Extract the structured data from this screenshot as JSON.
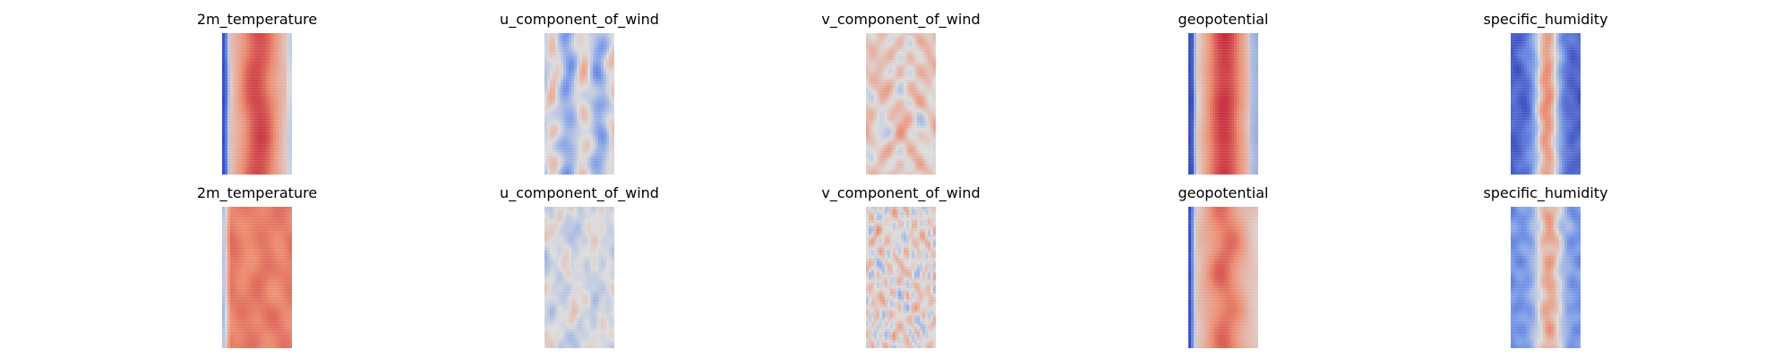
{
  "chart_data": {
    "type": "heatmap",
    "colormap": "coolwarm",
    "colors": {
      "low": "#3b4cc0",
      "mid": "#dddddd",
      "high": "#b40426"
    },
    "grid": false,
    "axes_visible": false,
    "rows": [
      {
        "panels": [
          {
            "title": "2m_temperature",
            "field": "temperature",
            "seed": 11
          },
          {
            "title": "u_component_of_wind",
            "field": "u_wind",
            "seed": 12
          },
          {
            "title": "v_component_of_wind",
            "field": "v_wind",
            "seed": 13
          },
          {
            "title": "geopotential",
            "field": "geopotential",
            "seed": 14
          },
          {
            "title": "specific_humidity",
            "field": "humidity",
            "seed": 15
          }
        ]
      },
      {
        "panels": [
          {
            "title": "2m_temperature",
            "field": "temperature_alt",
            "seed": 21
          },
          {
            "title": "u_component_of_wind",
            "field": "u_wind_alt",
            "seed": 22
          },
          {
            "title": "v_component_of_wind",
            "field": "v_wind_alt",
            "seed": 23
          },
          {
            "title": "geopotential",
            "field": "geopotential_alt",
            "seed": 24
          },
          {
            "title": "specific_humidity",
            "field": "humidity_alt",
            "seed": 25
          }
        ]
      }
    ]
  }
}
